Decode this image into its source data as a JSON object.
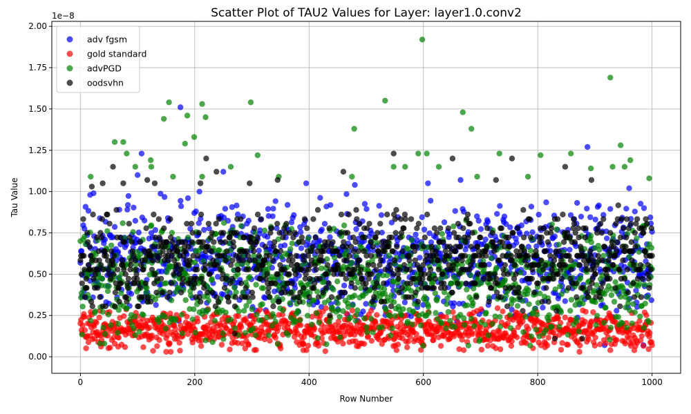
{
  "chart_data": {
    "type": "scatter",
    "title": "Scatter Plot of TAU2 Values for Layer: layer1.0.conv2",
    "xlabel": "Row Number",
    "ylabel": "Tau Value",
    "y_multiplier_label": "1e−8",
    "xlim": [
      -50,
      1050
    ],
    "ylim": [
      -0.1,
      2.03
    ],
    "y_scale_factor": 1e-08,
    "xticks": [
      0,
      200,
      400,
      600,
      800,
      1000
    ],
    "yticks": [
      0.0,
      0.25,
      0.5,
      0.75,
      1.0,
      1.25,
      1.5,
      1.75,
      2.0
    ],
    "ytick_labels": [
      "0.00",
      "0.25",
      "0.50",
      "0.75",
      "1.00",
      "1.25",
      "1.50",
      "1.75",
      "2.00"
    ],
    "grid": true,
    "legend_position": "top-left",
    "point_count_per_series": 1000,
    "x_range": [
      0,
      1000
    ],
    "series": [
      {
        "name": "adv fgsm",
        "color": "#0000ff",
        "bulk_range": [
          0.2,
          1.0
        ],
        "outliers": [
          [
            175,
            1.51
          ],
          [
            887,
            1.27
          ],
          [
            107,
            1.23
          ],
          [
            250,
            1.12
          ],
          [
            960,
            1.02
          ],
          [
            100,
            1.1
          ],
          [
            395,
            1.05
          ],
          [
            608,
            1.05
          ],
          [
            480,
            1.04
          ],
          [
            665,
            1.07
          ],
          [
            17,
            0.98
          ],
          [
            917,
            0.07
          ],
          [
            985,
            0.07
          ]
        ]
      },
      {
        "name": "gold standard",
        "color": "#ff0000",
        "bulk_range": [
          0.03,
          0.3
        ],
        "outliers": [
          [
            150,
            0.03
          ],
          [
            158,
            0.03
          ],
          [
            873,
            0.03
          ],
          [
            553,
            0.04
          ],
          [
            390,
            0.04
          ],
          [
            927,
            0.04
          ]
        ]
      },
      {
        "name": "advPGD",
        "color": "#008000",
        "bulk_range": [
          0.05,
          0.85
        ],
        "outliers": [
          [
            598,
            1.92
          ],
          [
            927,
            1.69
          ],
          [
            155,
            1.54
          ],
          [
            298,
            1.54
          ],
          [
            533,
            1.55
          ],
          [
            213,
            1.53
          ],
          [
            669,
            1.48
          ],
          [
            187,
            1.46
          ],
          [
            219,
            1.45
          ],
          [
            146,
            1.44
          ],
          [
            479,
            1.38
          ],
          [
            684,
            1.38
          ],
          [
            60,
            1.3
          ],
          [
            75,
            1.3
          ],
          [
            199,
            1.33
          ],
          [
            183,
            1.29
          ],
          [
            945,
            1.28
          ],
          [
            310,
            1.22
          ],
          [
            733,
            1.23
          ],
          [
            805,
            1.22
          ],
          [
            81,
            1.23
          ],
          [
            858,
            1.23
          ],
          [
            591,
            1.23
          ],
          [
            606,
            1.23
          ],
          [
            123,
            1.19
          ],
          [
            962,
            1.19
          ],
          [
            931,
            1.15
          ],
          [
            548,
            1.15
          ],
          [
            893,
            1.14
          ],
          [
            952,
            1.15
          ],
          [
            627,
            1.15
          ],
          [
            96,
            1.15
          ],
          [
            124,
            1.15
          ],
          [
            263,
            1.15
          ],
          [
            568,
            1.15
          ],
          [
            18,
            1.09
          ],
          [
            162,
            1.09
          ],
          [
            213,
            1.09
          ],
          [
            347,
            1.09
          ],
          [
            475,
            1.09
          ],
          [
            694,
            1.09
          ],
          [
            783,
            1.09
          ],
          [
            995,
            1.08
          ]
        ]
      },
      {
        "name": "oodsvhn",
        "color": "#000000",
        "bulk_range": [
          0.25,
          0.92
        ],
        "outliers": [
          [
            548,
            1.23
          ],
          [
            220,
            1.2
          ],
          [
            651,
            1.2
          ],
          [
            755,
            1.2
          ],
          [
            57,
            1.15
          ],
          [
            848,
            1.15
          ],
          [
            238,
            1.12
          ],
          [
            460,
            1.12
          ],
          [
            39,
            1.05
          ],
          [
            75,
            1.05
          ],
          [
            117,
            1.07
          ],
          [
            130,
            1.05
          ],
          [
            210,
            1.05
          ],
          [
            296,
            1.05
          ],
          [
            345,
            1.07
          ],
          [
            727,
            1.07
          ],
          [
            894,
            1.07
          ],
          [
            20,
            1.03
          ],
          [
            878,
            0.11
          ],
          [
            830,
            0.11
          ],
          [
            270,
            0.14
          ]
        ]
      }
    ]
  }
}
